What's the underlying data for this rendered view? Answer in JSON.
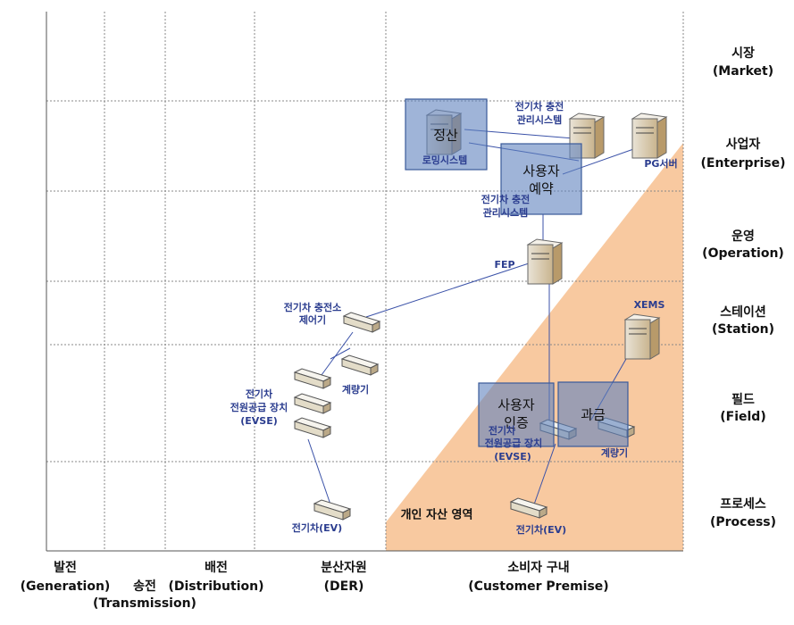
{
  "zones": [
    {
      "name": "시장",
      "english": "(Market)"
    },
    {
      "name": "사업자",
      "english": "(Enterprise)"
    },
    {
      "name": "운영",
      "english": "(Operation)"
    },
    {
      "name": "스테이션",
      "english": "(Station)"
    },
    {
      "name": "필드",
      "english": "(Field)"
    },
    {
      "name": "프로세스",
      "english": "(Process)"
    }
  ],
  "domains": [
    {
      "name": "발전",
      "english": "(Generation)"
    },
    {
      "name": "송전",
      "english": "(Transmission)"
    },
    {
      "name": "배전",
      "english": "(Distribution)"
    },
    {
      "name": "분산자원",
      "english": "(DER)"
    },
    {
      "name": "소비자 구내",
      "english": "(Customer  Premise)"
    }
  ],
  "boxes": [
    {
      "lines": [
        "정산"
      ],
      "sub": "로밍시스템"
    },
    {
      "lines": [
        "사용자",
        "예약"
      ]
    },
    {
      "lines": [
        "사용자",
        "인증"
      ]
    },
    {
      "lines": [
        "과금"
      ]
    }
  ],
  "nodes": [
    {
      "lines": [
        "전기차 충전",
        "관리시스템"
      ]
    },
    {
      "lines": [
        "PG서버"
      ]
    },
    {
      "lines": [
        "전기차 충전",
        "관리시스템"
      ]
    },
    {
      "lines": [
        "FEP"
      ]
    },
    {
      "lines": [
        "전기차 충전소",
        "제어기"
      ]
    },
    {
      "lines": [
        "계량기"
      ]
    },
    {
      "lines": [
        "전기차",
        "전원공급 장치",
        "(EVSE)"
      ]
    },
    {
      "lines": [
        "전기차(EV)"
      ]
    },
    {
      "lines": [
        "XEMS"
      ]
    },
    {
      "lines": [
        "전기차",
        "전원공급 장치",
        "(EVSE)"
      ]
    },
    {
      "lines": [
        "계량기"
      ]
    },
    {
      "lines": [
        "전기차(EV)"
      ]
    }
  ],
  "area_label": "개인 자산 영역"
}
